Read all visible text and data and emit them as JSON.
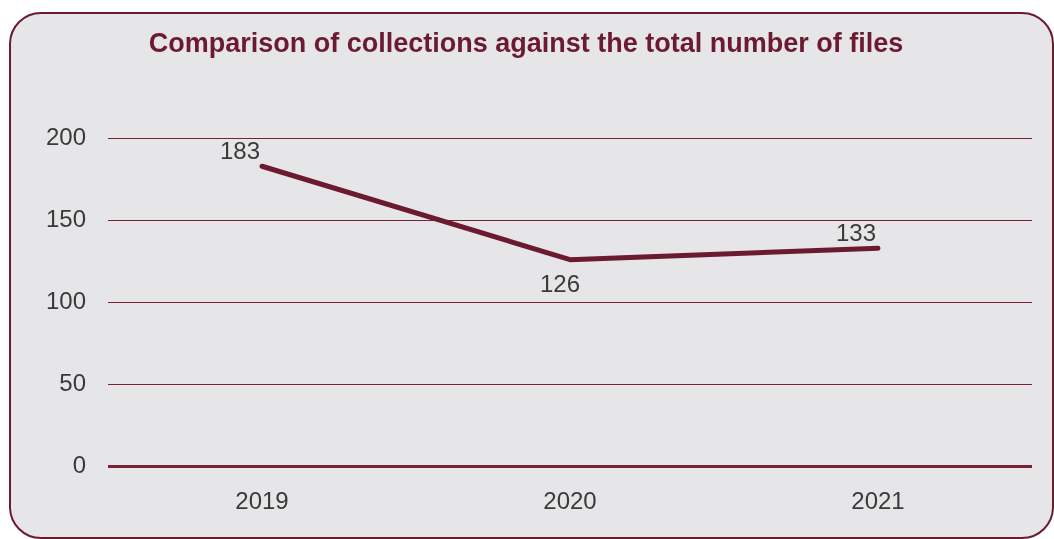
{
  "chart_data": {
    "type": "line",
    "title": "Comparison of collections against the total number of files",
    "categories": [
      "2019",
      "2020",
      "2021"
    ],
    "series": [
      {
        "color": "#6b1a30",
        "values": [
          183,
          126,
          133
        ]
      }
    ],
    "ylim": [
      0,
      200
    ],
    "yticks": [
      0,
      50,
      100,
      150,
      200
    ],
    "grid": "y",
    "legend": false,
    "marker": "none",
    "line_style": "solid",
    "data_labels": true
  }
}
